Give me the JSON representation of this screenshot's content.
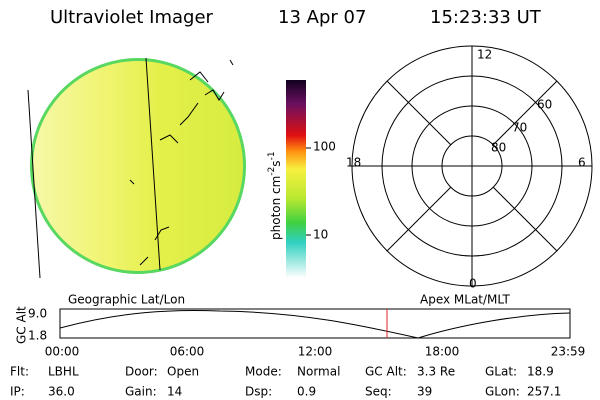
{
  "header": {
    "instrument": "Ultraviolet Imager",
    "date": "13 Apr 07",
    "time": "15:23:33 UT"
  },
  "colorbar": {
    "unit": "photon cm",
    "unit_exp1": "-2",
    "unit_mid": "s",
    "unit_exp2": "-1",
    "ticks": [
      "100",
      "10"
    ]
  },
  "polar": {
    "mlt": {
      "top": "12",
      "left": "18",
      "right": "6",
      "bottom": "0"
    },
    "lat": [
      "60",
      "70",
      "80"
    ]
  },
  "timeline": {
    "left_title": "Geographic Lat/Lon",
    "right_title": "Apex MLat/MLT",
    "axis_label": "GC Alt",
    "y_top": "9.0",
    "y_bottom": "1.8",
    "times": [
      "00:00",
      "06:00",
      "12:00",
      "18:00",
      "23:59"
    ]
  },
  "info": [
    [
      {
        "label": "Flt:",
        "value": "LBHL"
      },
      {
        "label": "Door:",
        "value": "Open"
      },
      {
        "label": "Mode:",
        "value": "Normal"
      },
      {
        "label": "GC Alt:",
        "value": "3.3 Re"
      },
      {
        "label": "GLat:",
        "value": "18.9"
      }
    ],
    [
      {
        "label": "IP:",
        "value": "36.0"
      },
      {
        "label": "Gain:",
        "value": "14"
      },
      {
        "label": "Dsp:",
        "value": "0.9"
      },
      {
        "label": "Seq:",
        "value": "39"
      },
      {
        "label": "GLon:",
        "value": "257.1"
      }
    ]
  ]
}
